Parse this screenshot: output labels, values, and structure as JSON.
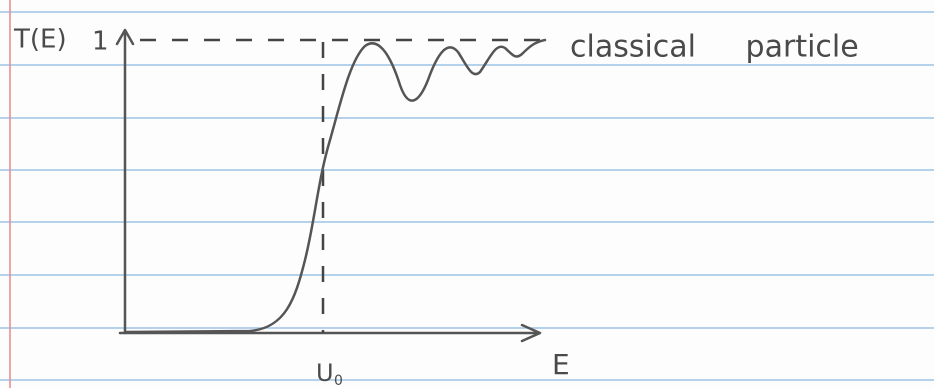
{
  "labels": {
    "y_axis": "T(E)",
    "y_one": "1",
    "x_axis": "E",
    "barrier": "U",
    "barrier_sub": "0",
    "classical": "classical particle"
  }
}
